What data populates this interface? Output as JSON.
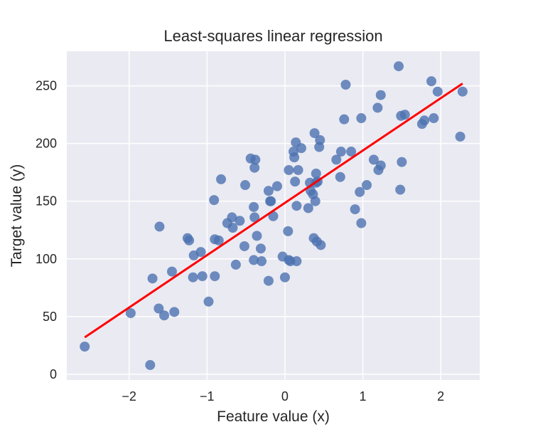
{
  "chart_data": {
    "type": "scatter",
    "title": "Least-squares linear regression",
    "xlabel": "Feature value (x)",
    "ylabel": "Target value (y)",
    "xlim": [
      -2.8,
      2.5
    ],
    "ylim": [
      -5,
      280
    ],
    "xticks": [
      -2,
      -1,
      0,
      1,
      2
    ],
    "xtick_labels": [
      "−2",
      "−1",
      "0",
      "1",
      "2"
    ],
    "yticks": [
      0,
      50,
      100,
      150,
      200,
      250
    ],
    "ytick_labels": [
      "0",
      "50",
      "100",
      "150",
      "200",
      "250"
    ],
    "grid": true,
    "background": "#eaeaf2",
    "colors": {
      "points": "#4c72b0",
      "line": "#ff0000",
      "grid": "#ffffff"
    },
    "series": [
      {
        "kind": "scatter",
        "points": [
          [
            -2.57,
            24
          ],
          [
            -1.73,
            8
          ],
          [
            -1.98,
            53
          ],
          [
            -1.62,
            57
          ],
          [
            -1.55,
            51
          ],
          [
            -1.42,
            54
          ],
          [
            -1.7,
            83
          ],
          [
            -1.45,
            89
          ],
          [
            -1.61,
            128
          ],
          [
            -1.25,
            118
          ],
          [
            -1.23,
            116
          ],
          [
            -1.17,
            103
          ],
          [
            -1.08,
            106
          ],
          [
            -1.18,
            84
          ],
          [
            -1.06,
            85
          ],
          [
            -0.98,
            63
          ],
          [
            -0.9,
            85
          ],
          [
            -0.9,
            117
          ],
          [
            -0.85,
            116
          ],
          [
            -0.91,
            151
          ],
          [
            -0.82,
            169
          ],
          [
            -0.74,
            131
          ],
          [
            -0.68,
            136
          ],
          [
            -0.67,
            127
          ],
          [
            -0.58,
            133
          ],
          [
            -0.63,
            95
          ],
          [
            -0.52,
            111
          ],
          [
            -0.51,
            164
          ],
          [
            -0.44,
            187
          ],
          [
            -0.38,
            186
          ],
          [
            -0.39,
            179
          ],
          [
            -0.4,
            145
          ],
          [
            -0.39,
            136
          ],
          [
            -0.36,
            120
          ],
          [
            -0.4,
            99
          ],
          [
            -0.31,
            109
          ],
          [
            -0.3,
            98
          ],
          [
            -0.21,
            159
          ],
          [
            -0.19,
            150
          ],
          [
            -0.18,
            150
          ],
          [
            -0.15,
            137
          ],
          [
            -0.1,
            163
          ],
          [
            -0.21,
            81
          ],
          [
            -0.03,
            102
          ],
          [
            0.0,
            84
          ],
          [
            0.05,
            99
          ],
          [
            0.07,
            98
          ],
          [
            0.15,
            98
          ],
          [
            0.04,
            124
          ],
          [
            0.05,
            177
          ],
          [
            0.17,
            177
          ],
          [
            0.13,
            167
          ],
          [
            0.15,
            146
          ],
          [
            0.11,
            193
          ],
          [
            0.14,
            201
          ],
          [
            0.21,
            196
          ],
          [
            0.12,
            188
          ],
          [
            0.3,
            144
          ],
          [
            0.32,
            166
          ],
          [
            0.33,
            159
          ],
          [
            0.36,
            156
          ],
          [
            0.39,
            150
          ],
          [
            0.4,
            174
          ],
          [
            0.42,
            167
          ],
          [
            0.4,
            166
          ],
          [
            0.38,
            209
          ],
          [
            0.44,
            197
          ],
          [
            0.45,
            203
          ],
          [
            0.37,
            118
          ],
          [
            0.41,
            115
          ],
          [
            0.46,
            112
          ],
          [
            0.66,
            186
          ],
          [
            0.71,
            171
          ],
          [
            0.72,
            193
          ],
          [
            0.76,
            221
          ],
          [
            0.78,
            251
          ],
          [
            0.85,
            193
          ],
          [
            0.9,
            143
          ],
          [
            0.96,
            158
          ],
          [
            0.98,
            131
          ],
          [
            0.98,
            222
          ],
          [
            1.05,
            164
          ],
          [
            1.14,
            186
          ],
          [
            1.2,
            177
          ],
          [
            1.23,
            181
          ],
          [
            1.19,
            231
          ],
          [
            1.23,
            242
          ],
          [
            1.46,
            267
          ],
          [
            1.48,
            160
          ],
          [
            1.49,
            224
          ],
          [
            1.5,
            184
          ],
          [
            1.54,
            225
          ],
          [
            1.76,
            217
          ],
          [
            1.79,
            220
          ],
          [
            1.88,
            254
          ],
          [
            1.91,
            222
          ],
          [
            1.96,
            245
          ],
          [
            2.25,
            206
          ],
          [
            2.28,
            245
          ]
        ]
      },
      {
        "kind": "line",
        "points": [
          [
            -2.57,
            32
          ],
          [
            2.28,
            252
          ]
        ]
      }
    ]
  }
}
